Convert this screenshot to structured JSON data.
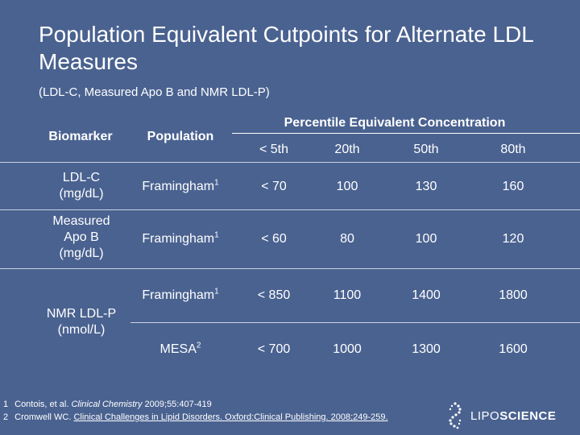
{
  "title": "Population Equivalent Cutpoints for Alternate LDL Measures",
  "subtitle": "(LDL-C, Measured Apo B and NMR LDL-P)",
  "table": {
    "col_biomarker": "Biomarker",
    "col_population": "Population",
    "group_header": "Percentile Equivalent Concentration",
    "percentiles": [
      "< 5th",
      "20th",
      "50th",
      "80th"
    ],
    "rows": [
      {
        "biomarker": "LDL-C (mg/dL)",
        "population": "Framingham",
        "ref": "1",
        "values": [
          "< 70",
          "100",
          "130",
          "160"
        ]
      },
      {
        "biomarker": "Measured Apo B (mg/dL)",
        "population": "Framingham",
        "ref": "1",
        "values": [
          "< 60",
          "80",
          "100",
          "120"
        ]
      },
      {
        "biomarker": "NMR LDL-P (nmol/L)",
        "population": "Framingham",
        "ref": "1",
        "values": [
          "< 850",
          "1100",
          "1400",
          "1800"
        ]
      },
      {
        "biomarker": "",
        "population": "MESA",
        "ref": "2",
        "values": [
          "< 700",
          "1000",
          "1300",
          "1600"
        ]
      }
    ]
  },
  "footnotes": [
    {
      "num": "1",
      "pre": "Contois, et al. ",
      "journal": "Clinical Chemistry",
      "post": " 2009;55:407-419",
      "underline": ""
    },
    {
      "num": "2",
      "pre": "Cromwell WC. ",
      "journal": "",
      "post": "",
      "underline": "Clinical Challenges in Lipid Disorders. Oxford:Clinical Publishing. 2008;249-259."
    }
  ],
  "logo": {
    "part1": "LIPO",
    "part2": "SCIENCE"
  },
  "colors": {
    "background": "#4a6290",
    "text": "#ffffff"
  }
}
